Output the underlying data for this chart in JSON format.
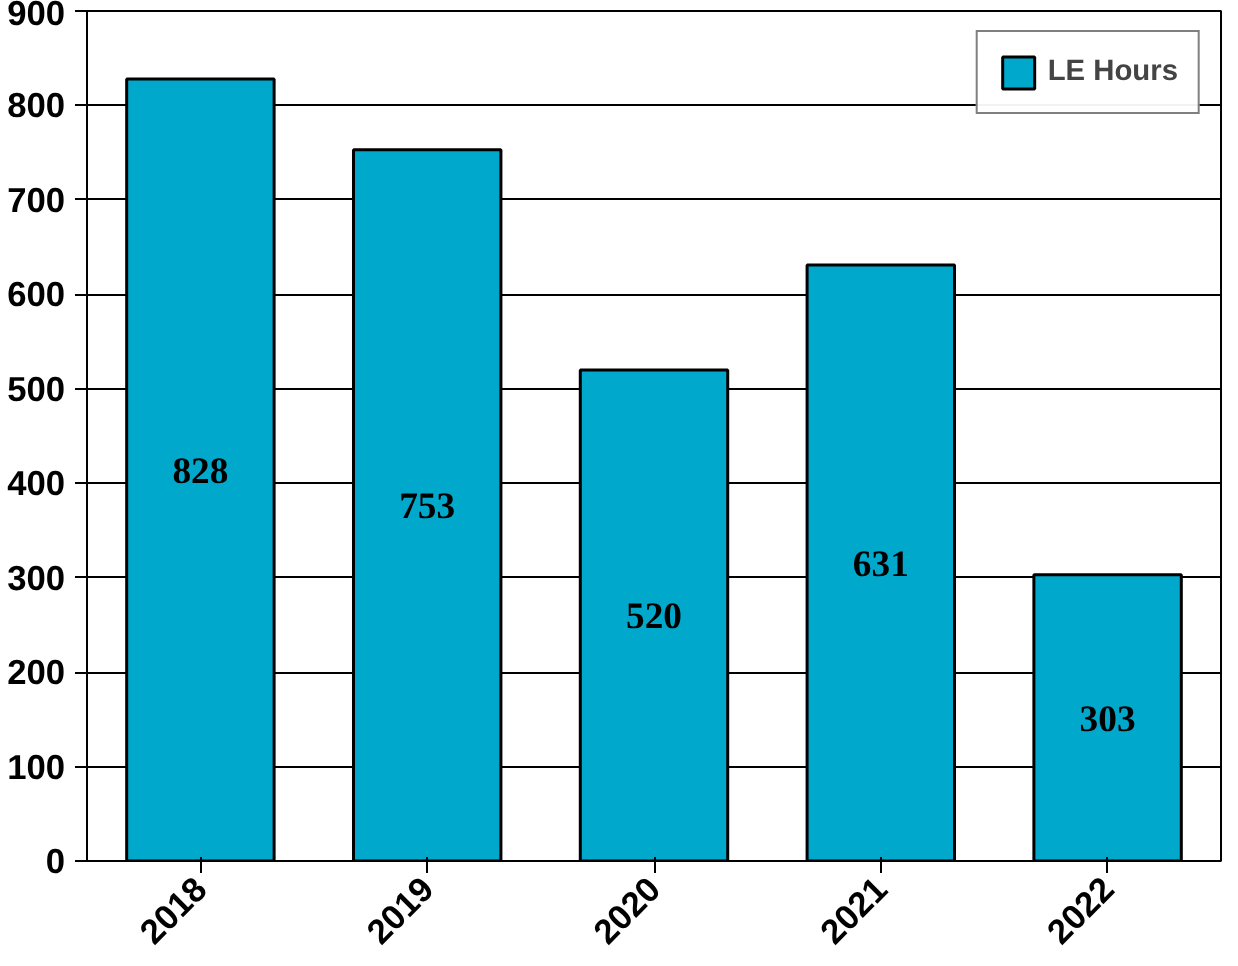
{
  "chart_data": {
    "type": "bar",
    "categories": [
      "2018",
      "2019",
      "2020",
      "2021",
      "2022"
    ],
    "series": [
      {
        "name": "LE Hours",
        "color": "#00a8cc",
        "values": [
          828,
          753,
          520,
          631,
          303
        ]
      }
    ],
    "ylim": [
      0,
      900
    ],
    "yticks": [
      0,
      100,
      200,
      300,
      400,
      500,
      600,
      700,
      800,
      900
    ],
    "grid": "y",
    "legend": "top right",
    "data_labels": true
  }
}
